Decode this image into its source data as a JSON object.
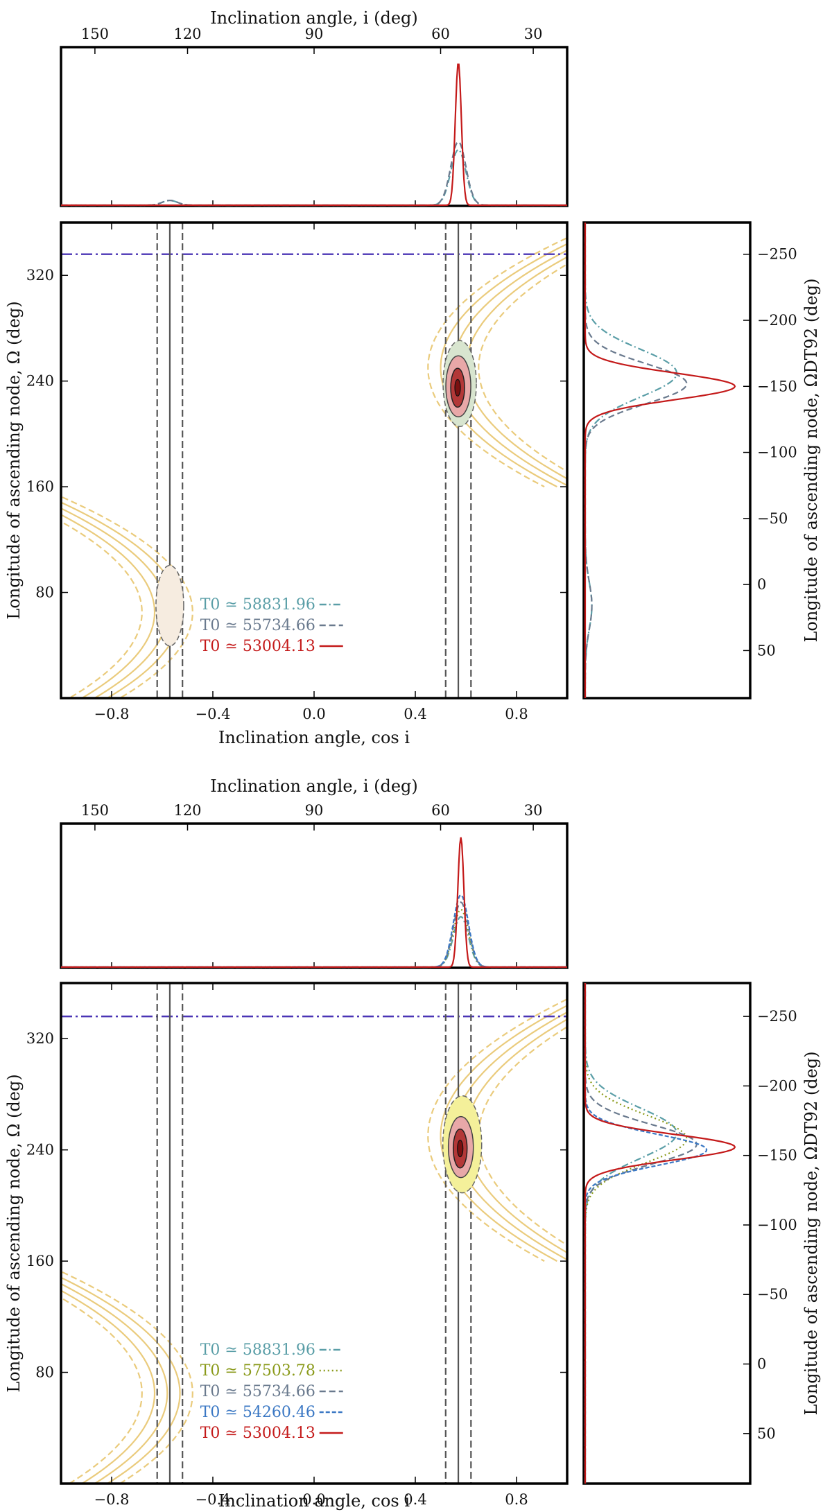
{
  "chart_data": [
    {
      "type": "line",
      "panel": "top",
      "top_xlabel": "Inclination angle, i (deg)",
      "top_ticks": [
        "150",
        "120",
        "90",
        "60",
        "30"
      ],
      "top_tick_values_deg": [
        150,
        120,
        90,
        60,
        30
      ],
      "xlabel": "Inclination angle, cos i",
      "xticks": [
        "−0.8",
        "−0.4",
        "0.0",
        "0.4",
        "0.8"
      ],
      "xtick_values": [
        -0.8,
        -0.4,
        0.0,
        0.4,
        0.8
      ],
      "xlim": [
        -1.0,
        1.0
      ],
      "ylabel": "Longitude of ascending node, Ω (deg)",
      "yticks": [
        "80",
        "160",
        "240",
        "320"
      ],
      "ytick_values": [
        80,
        160,
        240,
        320
      ],
      "ylim": [
        0,
        360
      ],
      "right_ylabel": "Longitude of ascending node, ΩDT92 (deg)",
      "right_ticks": [
        "−250",
        "−200",
        "−150",
        "−100",
        "−50",
        "0",
        "50"
      ],
      "right_tick_values_omega": [
        336,
        286,
        236,
        186,
        136,
        86,
        36
      ],
      "reference_hline_omega": 336,
      "vertical_lines_cosi": {
        "solid": [
          -0.57,
          0.57
        ],
        "dashed": [
          -0.62,
          -0.52,
          0.52,
          0.62
        ]
      },
      "series": [
        {
          "name": "T0 ≃ 58831.96",
          "label": "T0 ≃ 58831.96",
          "color": "#5a9ea7",
          "dash": "10,4,2,4",
          "peak_cosi": 0.57,
          "peak_omega": 246,
          "width_omega": 18
        },
        {
          "name": "T0 ≃ 55734.66",
          "label": "T0 ≃ 55734.66",
          "color": "#6a7a8e",
          "dash": "9,5",
          "peak_cosi": 0.57,
          "peak_omega": 238,
          "width_omega": 15
        },
        {
          "name": "T0 ≃ 53004.13",
          "label": "T0 ≃ 53004.13",
          "color": "#c41a1a",
          "dash": "",
          "peak_cosi": 0.57,
          "peak_omega": 236,
          "width_omega": 10
        }
      ]
    },
    {
      "type": "line",
      "panel": "bottom",
      "top_xlabel": "Inclination angle, i (deg)",
      "top_ticks": [
        "150",
        "120",
        "90",
        "60",
        "30"
      ],
      "top_tick_values_deg": [
        150,
        120,
        90,
        60,
        30
      ],
      "xlabel": "Inclination angle, cos i",
      "xticks": [
        "−0.8",
        "−0.4",
        "0.0",
        "0.4",
        "0.8"
      ],
      "xtick_values": [
        -0.8,
        -0.4,
        0.0,
        0.4,
        0.8
      ],
      "xlim": [
        -1.0,
        1.0
      ],
      "ylabel": "Longitude of ascending node, Ω (deg)",
      "yticks": [
        "80",
        "160",
        "240",
        "320"
      ],
      "ytick_values": [
        80,
        160,
        240,
        320
      ],
      "ylim": [
        0,
        360
      ],
      "right_ylabel": "Longitude of ascending node, ΩDT92 (deg)",
      "right_ticks": [
        "−250",
        "−200",
        "−150",
        "−100",
        "−50",
        "0",
        "50"
      ],
      "right_tick_values_omega": [
        336,
        286,
        236,
        186,
        136,
        86,
        36
      ],
      "reference_hline_omega": 336,
      "vertical_lines_cosi": {
        "solid": [
          -0.57,
          0.57
        ],
        "dashed": [
          -0.62,
          -0.52,
          0.52,
          0.62
        ]
      },
      "series": [
        {
          "name": "T0 ≃ 58831.96",
          "label": "T0 ≃ 58831.96",
          "color": "#5a9ea7",
          "dash": "10,4,2,4",
          "peak_cosi": 0.58,
          "peak_omega": 252,
          "width_omega": 18
        },
        {
          "name": "T0 ≃ 57503.78",
          "label": "T0 ≃ 57503.78",
          "color": "#8a9a1a",
          "dash": "2,4",
          "peak_cosi": 0.58,
          "peak_omega": 248,
          "width_omega": 17
        },
        {
          "name": "T0 ≃ 55734.66",
          "label": "T0 ≃ 55734.66",
          "color": "#6a7a8e",
          "dash": "9,5",
          "peak_cosi": 0.58,
          "peak_omega": 244,
          "width_omega": 14
        },
        {
          "name": "T0 ≃ 54260.46",
          "label": "T0 ≃ 54260.46",
          "color": "#3b78c4",
          "dash": "6,3",
          "peak_cosi": 0.58,
          "peak_omega": 240,
          "width_omega": 11
        },
        {
          "name": "T0 ≃ 53004.13",
          "label": "T0 ≃ 53004.13",
          "color": "#c41a1a",
          "dash": "",
          "peak_cosi": 0.58,
          "peak_omega": 242,
          "width_omega": 9
        }
      ]
    }
  ]
}
